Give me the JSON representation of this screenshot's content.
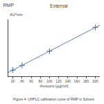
{
  "chart_data": {
    "type": "scatter",
    "title": "RMP",
    "subtitle": "External",
    "xlabel": "Amount (μg/ml)",
    "ylabel": "AU*min",
    "annotations": [
      "Figure 4: UHPLC calibration curve of RMP in Solvent"
    ],
    "series": [
      {
        "type": "line",
        "x": [
          10,
          210
        ],
        "values": [
          0.03,
          1.03
        ],
        "color": "#6080a8",
        "line_style": "solid"
      },
      {
        "type": "scatter",
        "x": [
          20,
          40,
          100,
          200
        ],
        "values": [
          0.08,
          0.18,
          0.48,
          0.98
        ],
        "color": "#4a6e9e",
        "marker": "plus"
      }
    ],
    "xlim": [
      10,
      210
    ],
    "ylim": [
      -0.05,
      1.15
    ],
    "xticks": [
      20,
      40,
      60,
      80,
      100,
      120,
      140,
      160,
      180,
      200
    ],
    "yticks": [],
    "tick_labels": "x",
    "grid": false
  }
}
